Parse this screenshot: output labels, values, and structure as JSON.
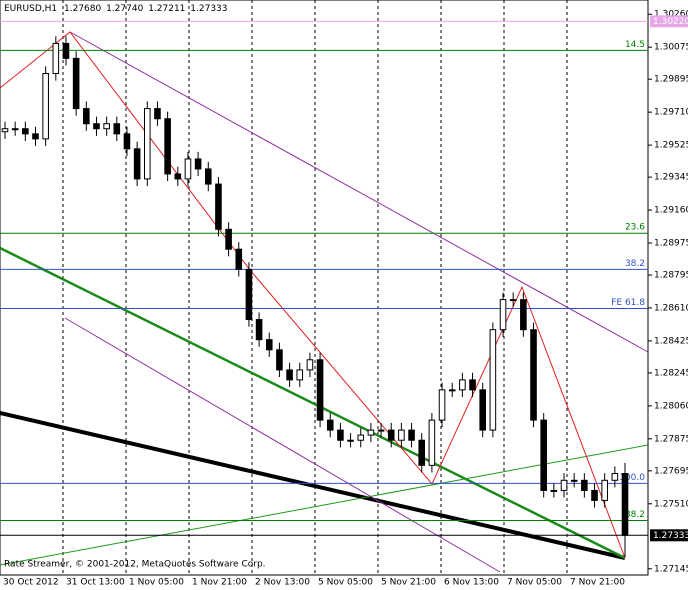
{
  "header": {
    "symbol": "EURUSD,H1",
    "open": "1.27680",
    "high": "1.27740",
    "low": "1.27211",
    "close": "1.27333"
  },
  "copyright": "Rate Streamer, © 2001-2012, MetaQuotes Software Corp.",
  "chart_data": {
    "type": "candlestick",
    "time_labels": [
      "30 Oct 2012",
      "31 Oct 13:00",
      "1 Nov 05:00",
      "1 Nov 21:00",
      "2 Nov 13:00",
      "5 Nov 05:00",
      "5 Nov 21:00",
      "6 Nov 13:00",
      "7 Nov 05:00",
      "7 Nov 21:00"
    ],
    "open": [
      1.296,
      1.29617,
      1.29617,
      1.29588,
      1.2956,
      1.29927,
      1.30096,
      1.30012,
      1.2973,
      1.29645,
      1.29617,
      1.29645,
      1.29588,
      1.29504,
      1.29335,
      1.2973,
      1.29673,
      1.29363,
      1.29335,
      1.29447,
      1.29391,
      1.29306,
      1.29052,
      1.2894,
      1.28827,
      1.28545,
      1.28432,
      1.28375,
      1.28262,
      1.28206,
      1.28262,
      1.28319,
      1.2798,
      1.27924,
      1.27867,
      1.27867,
      1.27896,
      1.27924,
      1.27924,
      1.27867,
      1.27924,
      1.27867,
      1.27726,
      1.2798,
      1.2815,
      1.2815,
      1.28206,
      1.2815,
      1.27924,
      1.28488,
      1.28657,
      1.28657,
      1.28488,
      1.2798,
      1.27585,
      1.27585,
      1.27642,
      1.27642,
      1.27585,
      1.27529,
      1.27642,
      1.2768
    ],
    "high": [
      1.29657,
      1.29657,
      1.29657,
      1.29628,
      1.29967,
      1.30136,
      1.30136,
      1.30052,
      1.2977,
      1.29685,
      1.29685,
      1.29685,
      1.29628,
      1.29544,
      1.2977,
      1.2977,
      1.29713,
      1.29403,
      1.29487,
      1.29487,
      1.29431,
      1.29346,
      1.29092,
      1.2898,
      1.28867,
      1.28585,
      1.28472,
      1.28415,
      1.28302,
      1.28302,
      1.28359,
      1.28359,
      1.2802,
      1.27964,
      1.27907,
      1.27936,
      1.27964,
      1.27964,
      1.27964,
      1.27964,
      1.27964,
      1.27907,
      1.2802,
      1.2819,
      1.2819,
      1.28246,
      1.28246,
      1.2819,
      1.28528,
      1.28697,
      1.28697,
      1.28697,
      1.28528,
      1.2802,
      1.27625,
      1.27682,
      1.27682,
      1.27682,
      1.27625,
      1.27682,
      1.2772,
      1.2774
    ],
    "low": [
      1.2956,
      1.29577,
      1.29548,
      1.2952,
      1.2952,
      1.29887,
      1.29972,
      1.2969,
      1.29605,
      1.29577,
      1.29577,
      1.29548,
      1.29464,
      1.29295,
      1.29295,
      1.29633,
      1.29323,
      1.29295,
      1.29295,
      1.29351,
      1.29266,
      1.29012,
      1.289,
      1.28787,
      1.28505,
      1.28392,
      1.28335,
      1.28222,
      1.28166,
      1.28166,
      1.28222,
      1.2794,
      1.27884,
      1.27827,
      1.27827,
      1.27827,
      1.27856,
      1.27884,
      1.27827,
      1.27827,
      1.27827,
      1.27686,
      1.27686,
      1.2794,
      1.2811,
      1.2811,
      1.2811,
      1.27884,
      1.27884,
      1.28448,
      1.28617,
      1.28448,
      1.2794,
      1.27545,
      1.27545,
      1.27545,
      1.27602,
      1.27545,
      1.27489,
      1.27489,
      1.27602,
      1.27211
    ],
    "close": [
      1.29617,
      1.29617,
      1.29588,
      1.2956,
      1.29927,
      1.30096,
      1.30012,
      1.2973,
      1.29645,
      1.29617,
      1.29645,
      1.29588,
      1.29504,
      1.29335,
      1.2973,
      1.29673,
      1.29363,
      1.29335,
      1.29447,
      1.29391,
      1.29306,
      1.29052,
      1.2894,
      1.28827,
      1.28545,
      1.28432,
      1.28375,
      1.28262,
      1.28206,
      1.28262,
      1.28319,
      1.2798,
      1.27924,
      1.27867,
      1.27867,
      1.27896,
      1.27924,
      1.27924,
      1.27867,
      1.27924,
      1.27867,
      1.27726,
      1.2798,
      1.2815,
      1.2815,
      1.28206,
      1.2815,
      1.27924,
      1.28488,
      1.28657,
      1.28657,
      1.28488,
      1.2798,
      1.27585,
      1.27585,
      1.27642,
      1.27642,
      1.27585,
      1.27529,
      1.27642,
      1.2768,
      1.27333
    ],
    "ylim": [
      1.2711,
      1.3034
    ],
    "yticks": [
      {
        "value": 1.3026,
        "label": "1.30260"
      },
      {
        "value": 1.30075,
        "label": "1.30075"
      },
      {
        "value": 1.29895,
        "label": "1.29895"
      },
      {
        "value": 1.2971,
        "label": "1.29710"
      },
      {
        "value": 1.29525,
        "label": "1.29525"
      },
      {
        "value": 1.29345,
        "label": "1.29345"
      },
      {
        "value": 1.2916,
        "label": "1.29160"
      },
      {
        "value": 1.28975,
        "label": "1.28975"
      },
      {
        "value": 1.28795,
        "label": "1.28795"
      },
      {
        "value": 1.2861,
        "label": "1.28610"
      },
      {
        "value": 1.28425,
        "label": "1.28425"
      },
      {
        "value": 1.28245,
        "label": "1.28245"
      },
      {
        "value": 1.2806,
        "label": "1.28060"
      },
      {
        "value": 1.27875,
        "label": "1.27875"
      },
      {
        "value": 1.27695,
        "label": "1.27695"
      },
      {
        "value": 1.2751,
        "label": "1.27510"
      },
      {
        "value": 1.27145,
        "label": "1.27145"
      }
    ],
    "price_tags": [
      {
        "value": 1.3022,
        "label": "1.30220",
        "color": "#e8a8e8"
      },
      {
        "value": 1.27333,
        "label": "1.27333",
        "color": "#000000"
      }
    ],
    "levels": [
      {
        "label": "14.5",
        "value": 1.30057,
        "color": "#008000"
      },
      {
        "label": "23.6",
        "value": 1.2903,
        "color": "#008000"
      },
      {
        "label": "38.2",
        "value": 1.28827,
        "color": "#3050c8"
      },
      {
        "label": "FE 61.8",
        "value": 1.28607,
        "color": "#3050c8"
      },
      {
        "label": "100.0",
        "value": 1.27625,
        "color": "#3050c8"
      },
      {
        "label": "38.2",
        "value": 1.27416,
        "color": "#008000"
      }
    ]
  }
}
